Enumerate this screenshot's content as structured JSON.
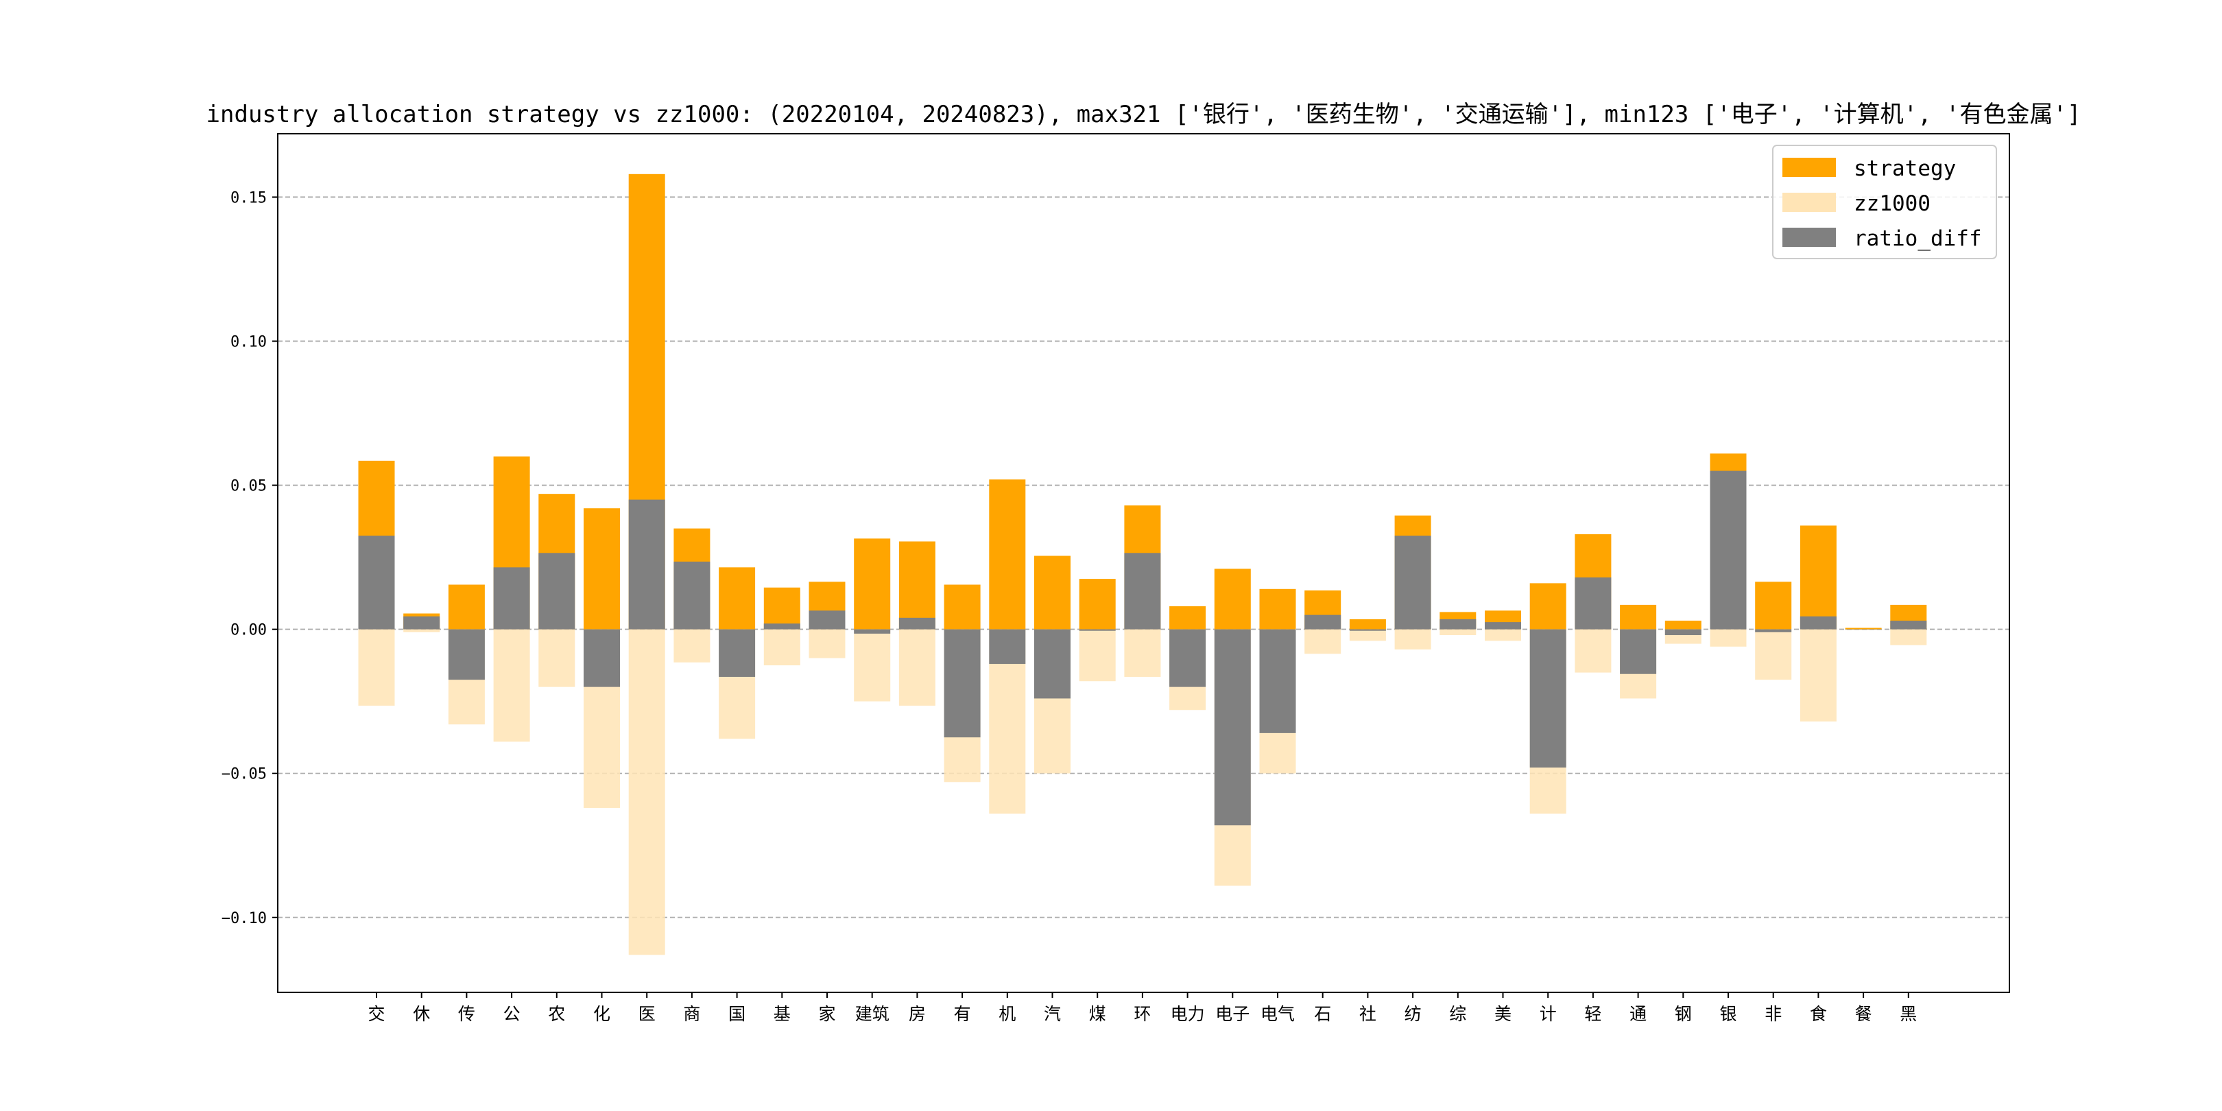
{
  "chart_data": {
    "type": "bar",
    "title": "industry allocation strategy vs zz1000: (20220104, 20240823), max321 ['银行', '医药生物', '交通运输'], min123 ['电子', '计算机', '有色金属']",
    "xlabel": "",
    "ylabel": "",
    "ylim": [
      -0.126,
      0.172
    ],
    "yticks": [
      -0.1,
      -0.05,
      0.0,
      0.05,
      0.1,
      0.15
    ],
    "ytick_labels": [
      "−0.10",
      "−0.05",
      "0.00",
      "0.05",
      "0.10",
      "0.15"
    ],
    "grid": "horizontal dashed",
    "legend_position": "upper right",
    "categories": [
      "交",
      "休",
      "传",
      "公",
      "农",
      "化",
      "医",
      "商",
      "国",
      "基",
      "家",
      "建筑",
      "房",
      "有",
      "机",
      "汽",
      "煤",
      "环",
      "电力",
      "电子",
      "电气",
      "石",
      "社",
      "纺",
      "综",
      "美",
      "计",
      "轻",
      "通",
      "钢",
      "银",
      "非",
      "食",
      "餐",
      "黑"
    ],
    "series": [
      {
        "name": "strategy",
        "color": "#FFA500",
        "values": [
          0.0585,
          0.0055,
          0.0155,
          0.06,
          0.047,
          0.042,
          0.158,
          0.035,
          0.0215,
          0.0145,
          0.0165,
          0.0315,
          0.0305,
          0.0155,
          0.052,
          0.0255,
          0.0175,
          0.043,
          0.008,
          0.021,
          0.014,
          0.0135,
          0.0035,
          0.0395,
          0.006,
          0.0065,
          0.016,
          0.033,
          0.0085,
          0.003,
          0.061,
          0.0165,
          0.036,
          0.0005,
          0.0085
        ]
      },
      {
        "name": "zz1000",
        "color": "#FFE4B5",
        "values": [
          -0.0265,
          -0.001,
          -0.033,
          -0.039,
          -0.02,
          -0.062,
          -0.113,
          -0.0115,
          -0.038,
          -0.0125,
          -0.01,
          -0.025,
          -0.0265,
          -0.053,
          -0.064,
          -0.05,
          -0.018,
          -0.0165,
          -0.028,
          -0.089,
          -0.05,
          -0.0085,
          -0.004,
          -0.007,
          -0.002,
          -0.004,
          -0.064,
          -0.015,
          -0.024,
          -0.005,
          -0.006,
          -0.0175,
          -0.032,
          0.0,
          -0.0055
        ]
      },
      {
        "name": "ratio_diff",
        "color": "#808080",
        "values": [
          0.0325,
          0.0045,
          -0.0175,
          0.0215,
          0.0265,
          -0.02,
          0.045,
          0.0235,
          -0.0165,
          0.002,
          0.0065,
          -0.0015,
          0.004,
          -0.0375,
          -0.012,
          -0.024,
          -0.0005,
          0.0265,
          -0.02,
          -0.068,
          -0.036,
          0.005,
          -0.0005,
          0.0325,
          0.0035,
          0.0025,
          -0.048,
          0.018,
          -0.0155,
          -0.002,
          0.055,
          -0.001,
          0.0045,
          0.0,
          0.003
        ]
      }
    ]
  }
}
